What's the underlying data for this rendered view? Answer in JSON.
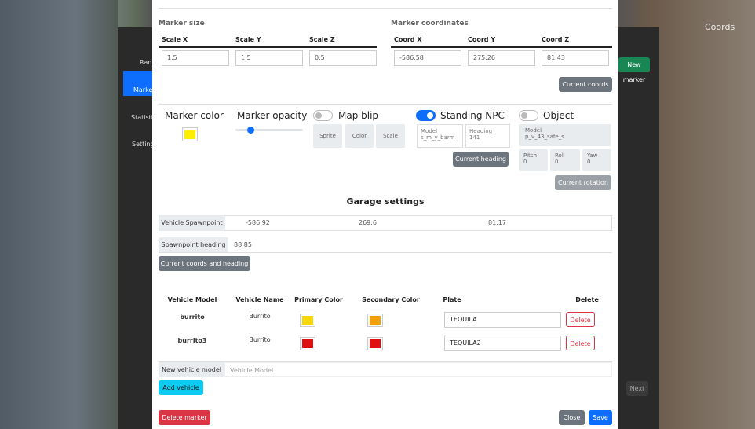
{
  "sidebar": {
    "items": [
      "Ranki",
      "Marker",
      "Statistics",
      "Settings"
    ]
  },
  "background": {
    "coords_label": "Coords",
    "new_marker": "New marker",
    "next": "Next"
  },
  "marker_size": {
    "title": "Marker size",
    "fields": [
      {
        "label": "Scale X",
        "value": "1.5"
      },
      {
        "label": "Scale Y",
        "value": "1.5"
      },
      {
        "label": "Scale Z",
        "value": "0.5"
      }
    ]
  },
  "marker_coordinates": {
    "title": "Marker coordinates",
    "fields": [
      {
        "label": "Coord X",
        "value": "-586.58"
      },
      {
        "label": "Coord Y",
        "value": "275.26"
      },
      {
        "label": "Coord Z",
        "value": "81.43"
      }
    ],
    "button": "Current coords"
  },
  "options": {
    "marker_color": {
      "label": "Marker color",
      "color": "#ffee00"
    },
    "marker_opacity": {
      "label": "Marker opacity"
    },
    "map_blip": {
      "label": "Map blip",
      "buttons": [
        "Sprite",
        "Color",
        "Scale"
      ]
    },
    "standing_npc": {
      "label": "Standing NPC",
      "model_label": "Model",
      "model": "s_m_y_barm",
      "heading_label": "Heading",
      "heading": "141",
      "button": "Current heading"
    },
    "object": {
      "label": "Object",
      "model_label": "Model",
      "model": "p_v_43_safe_s",
      "pitch_label": "Pitch",
      "pitch": "0",
      "roll_label": "Roll",
      "roll": "0",
      "yaw_label": "Yaw",
      "yaw": "0",
      "button": "Current rotation"
    }
  },
  "garage": {
    "title": "Garage settings",
    "spawnpoint_label": "Vehicle Spawnpoint",
    "spawnpoint": [
      "-586.92",
      "269.6",
      "81.17"
    ],
    "heading_label": "Spawnpoint heading",
    "heading": "88.85",
    "button": "Current coords and heading",
    "table": {
      "headers": [
        "Vehicle Model",
        "Vehicle Name",
        "Primary Color",
        "Secondary Color",
        "Plate",
        "Delete"
      ],
      "rows": [
        {
          "model": "burrito",
          "name": "Burrito",
          "primary": "#f7d708",
          "secondary": "#f5a00a",
          "plate": "TEQUILA",
          "delete": "Delete"
        },
        {
          "model": "burrito3",
          "name": "Burrito",
          "primary": "#e01010",
          "secondary": "#e01010",
          "plate": "TEQUILA2",
          "delete": "Delete"
        }
      ]
    },
    "new_vehicle_label": "New vehicle model",
    "new_vehicle_placeholder": "Vehicle Model",
    "add_button": "Add vehicle"
  },
  "footer": {
    "delete": "Delete marker",
    "close": "Close",
    "save": "Save"
  }
}
